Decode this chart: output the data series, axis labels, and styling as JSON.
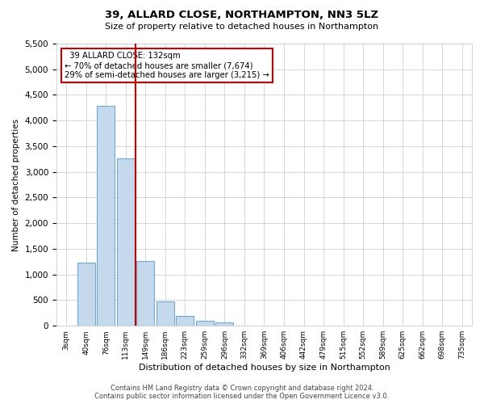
{
  "title": "39, ALLARD CLOSE, NORTHAMPTON, NN3 5LZ",
  "subtitle": "Size of property relative to detached houses in Northampton",
  "xlabel": "Distribution of detached houses by size in Northampton",
  "ylabel": "Number of detached properties",
  "footer_line1": "Contains HM Land Registry data © Crown copyright and database right 2024.",
  "footer_line2": "Contains public sector information licensed under the Open Government Licence v3.0.",
  "annotation_line1": "39 ALLARD CLOSE: 132sqm",
  "annotation_line2": "← 70% of detached houses are smaller (7,674)",
  "annotation_line3": "29% of semi-detached houses are larger (3,215) →",
  "bar_color": "#c5d9ec",
  "bar_edge_color": "#6fa8d0",
  "vline_color": "#cc0000",
  "annotation_box_edge_color": "#cc0000",
  "categories": [
    "3sqm",
    "40sqm",
    "76sqm",
    "113sqm",
    "149sqm",
    "186sqm",
    "223sqm",
    "259sqm",
    "296sqm",
    "332sqm",
    "369sqm",
    "406sqm",
    "442sqm",
    "479sqm",
    "515sqm",
    "552sqm",
    "589sqm",
    "625sqm",
    "662sqm",
    "698sqm",
    "735sqm"
  ],
  "values": [
    0,
    1230,
    4280,
    3270,
    1260,
    470,
    200,
    100,
    60,
    0,
    0,
    0,
    0,
    0,
    0,
    0,
    0,
    0,
    0,
    0,
    0
  ],
  "ylim": [
    0,
    5500
  ],
  "yticks": [
    0,
    500,
    1000,
    1500,
    2000,
    2500,
    3000,
    3500,
    4000,
    4500,
    5000,
    5500
  ],
  "vline_x": 3.5,
  "fig_width": 6.0,
  "fig_height": 5.0,
  "dpi": 100
}
